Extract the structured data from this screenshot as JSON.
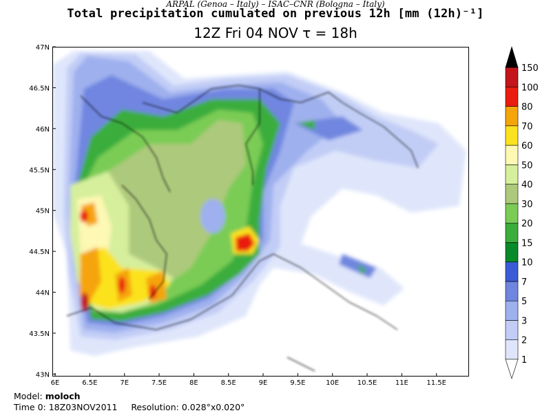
{
  "header": {
    "credit": "ARPAL (Genoa – Italy)  –  ISAC–CNR (Bologna – Italy)",
    "title": "Total precipitation cumulated on previous 12h [mm (12h)⁻¹]",
    "subtitle": "12Z Fri 04 NOV   τ = 18h"
  },
  "map": {
    "lat_labels": [
      "47N",
      "46.5N",
      "46N",
      "45.5N",
      "45N",
      "44.5N",
      "44N",
      "43.5N",
      "43N"
    ],
    "lon_labels": [
      "6E",
      "6.5E",
      "7E",
      "7.5E",
      "8E",
      "8.5E",
      "9E",
      "9.5E",
      "10E",
      "10.5E",
      "11E",
      "11.5E"
    ],
    "lat_range": [
      42.97,
      47.0
    ],
    "lon_range": [
      5.96,
      11.97
    ]
  },
  "colorbar": {
    "levels": [
      "1",
      "2",
      "3",
      "5",
      "7",
      "10",
      "15",
      "20",
      "30",
      "40",
      "50",
      "60",
      "70",
      "80",
      "100",
      "150"
    ],
    "colors": [
      "#ffffff",
      "#dfe6fb",
      "#c2cdf6",
      "#9fb0ee",
      "#6f86e0",
      "#3b5bd6",
      "#078a2a",
      "#3aad3c",
      "#7acc55",
      "#adc97c",
      "#d6ef9c",
      "#fdf8b4",
      "#fbe21e",
      "#f5a40a",
      "#ea1c0f",
      "#c3151b",
      "#8d0b0b",
      "#000000"
    ]
  },
  "footer": {
    "model_label": "Model:",
    "model_value": "moloch",
    "time_label": "Time 0:",
    "time_value": "18Z03NOV2011",
    "resolution_label": "Resolution:",
    "resolution_value": "0.028°x0.020°"
  }
}
